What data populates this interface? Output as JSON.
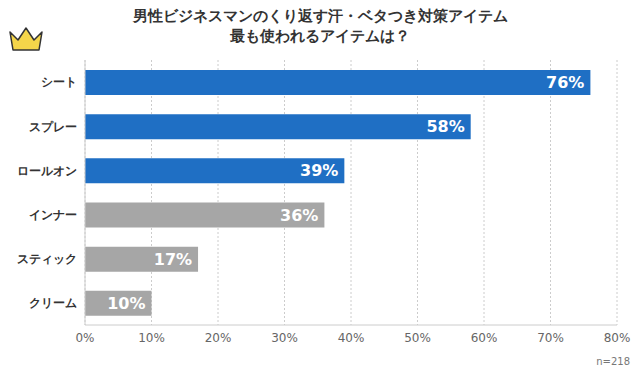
{
  "chart_data": {
    "type": "bar",
    "orientation": "horizontal",
    "title": "男性ビジネスマンのくり返す汗・ベタつき対策アイテム",
    "subtitle": "最も使われるアイテムは？",
    "categories": [
      "シート",
      "スプレー",
      "ロールオン",
      "インナー",
      "スティック",
      "クリーム"
    ],
    "values": [
      76,
      58,
      39,
      36,
      17,
      10
    ],
    "value_labels": [
      "76%",
      "58%",
      "39%",
      "36%",
      "17%",
      "10%"
    ],
    "colors": [
      "#1f6fc4",
      "#1f6fc4",
      "#1f6fc4",
      "#a6a6a6",
      "#a6a6a6",
      "#a6a6a6"
    ],
    "xlim": [
      0,
      80
    ],
    "xticks": [
      {
        "value": 0,
        "label": "0%"
      },
      {
        "value": 10,
        "label": "10%"
      },
      {
        "value": 20,
        "label": "20%"
      },
      {
        "value": 30,
        "label": "30%"
      },
      {
        "value": 40,
        "label": "40%"
      },
      {
        "value": 50,
        "label": "50%"
      },
      {
        "value": 60,
        "label": "60%"
      },
      {
        "value": 70,
        "label": "70%"
      },
      {
        "value": 80,
        "label": "80%"
      }
    ],
    "grid": true,
    "data_labels": true,
    "annotation": "n=218"
  }
}
